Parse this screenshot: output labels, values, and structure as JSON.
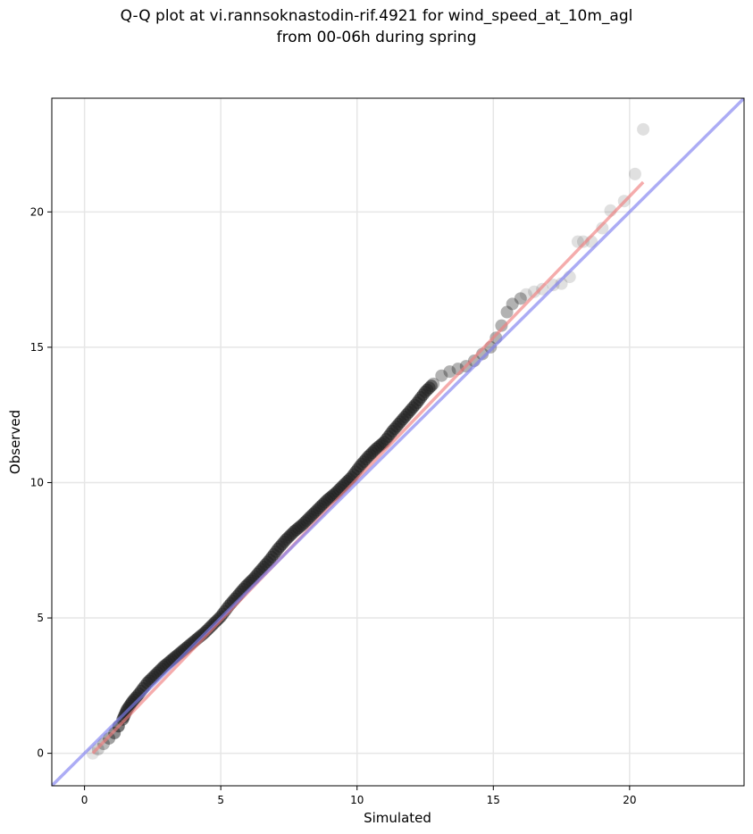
{
  "chart_data": {
    "type": "scatter",
    "title": "Q-Q plot at vi.rannsoknastodin-rif.4921 for wind_speed_at_10m_agl",
    "subtitle": "from 00-06h during spring",
    "xlabel": "Simulated",
    "ylabel": "Observed",
    "xlim": [
      -1.2,
      24.2
    ],
    "ylim": [
      -1.2,
      24.2
    ],
    "xticks": [
      0,
      5,
      10,
      15,
      20
    ],
    "yticks": [
      0,
      5,
      10,
      15,
      20
    ],
    "grid": true,
    "quantile_points": {
      "x": [
        0.3,
        0.5,
        0.7,
        0.9,
        1.1,
        1.25,
        1.4,
        1.55,
        1.75,
        2.0,
        2.3,
        2.6,
        2.9,
        3.2,
        3.5,
        3.8,
        4.1,
        4.4,
        4.7,
        5.0,
        5.3,
        5.6,
        5.9,
        6.2,
        6.5,
        6.8,
        7.1,
        7.4,
        7.7,
        8.0,
        8.3,
        8.6,
        8.9,
        9.2,
        9.5,
        9.8,
        10.1,
        10.4,
        10.7,
        11.0,
        11.3,
        11.6,
        11.9,
        12.2,
        12.5,
        12.8,
        13.1,
        13.4,
        13.7,
        14.0,
        14.3,
        14.6,
        14.9,
        15.1,
        15.3,
        15.5,
        15.7,
        16.0,
        16.2,
        16.5,
        16.8,
        17.2,
        17.5,
        17.8,
        18.1,
        18.3,
        18.6,
        19.0,
        19.3,
        19.8,
        20.2,
        20.5
      ],
      "y": [
        0.0,
        0.15,
        0.35,
        0.55,
        0.75,
        1.0,
        1.25,
        1.6,
        1.9,
        2.2,
        2.6,
        2.9,
        3.2,
        3.45,
        3.7,
        3.95,
        4.2,
        4.45,
        4.75,
        5.05,
        5.45,
        5.8,
        6.15,
        6.45,
        6.8,
        7.15,
        7.55,
        7.9,
        8.2,
        8.45,
        8.75,
        9.05,
        9.35,
        9.6,
        9.9,
        10.2,
        10.6,
        10.95,
        11.25,
        11.5,
        11.9,
        12.25,
        12.6,
        12.95,
        13.35,
        13.65,
        13.95,
        14.1,
        14.2,
        14.3,
        14.5,
        14.75,
        15.0,
        15.35,
        15.8,
        16.3,
        16.6,
        16.8,
        16.95,
        17.05,
        17.15,
        17.3,
        17.35,
        17.6,
        18.9,
        18.9,
        18.9,
        19.4,
        20.05,
        20.4,
        21.4,
        23.05
      ]
    },
    "series": [
      {
        "type": "line",
        "x": [
          0.3,
          20.5
        ],
        "y": [
          0.0,
          21.1
        ],
        "color": "#f08080"
      },
      {
        "type": "line",
        "x": [
          -1.2,
          24.2
        ],
        "y": [
          -1.2,
          24.2
        ],
        "color": "#8080f0"
      }
    ],
    "colors": {
      "points": "#222222",
      "fit_line": "#f08080",
      "identity_line": "#8080f0"
    }
  }
}
